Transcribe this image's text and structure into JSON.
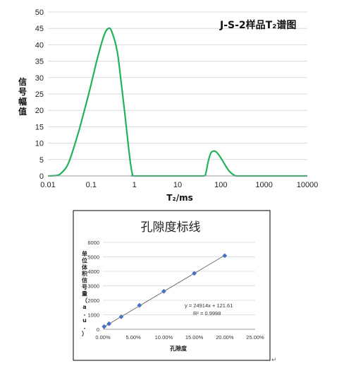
{
  "chart_data": [
    {
      "type": "line",
      "title": "J-S-2样品T₂谱图",
      "xlabel": "T₂/ms",
      "ylabel": "信号幅值",
      "xscale": "log",
      "xlim": [
        0.01,
        10000
      ],
      "ylim": [
        0,
        50
      ],
      "xticks": [
        "0.01",
        "0.1",
        "1",
        "10",
        "100",
        "1000",
        "10000"
      ],
      "yticks": [
        "0",
        "5",
        "10",
        "15",
        "20",
        "25",
        "30",
        "35",
        "40",
        "45",
        "50"
      ],
      "grid": "horizontal",
      "series": [
        {
          "color": "#22b35a",
          "x": [
            0.01,
            0.015,
            0.02,
            0.03,
            0.05,
            0.08,
            0.1,
            0.14,
            0.2,
            0.25,
            0.3,
            0.4,
            0.5,
            0.6,
            0.7,
            0.8,
            0.9,
            1,
            5,
            20,
            40,
            45,
            50,
            55,
            60,
            70,
            80,
            100,
            130,
            160,
            200,
            250,
            1000,
            10000
          ],
          "y": [
            0,
            0.1,
            0.8,
            4,
            13,
            23,
            28,
            36,
            43,
            45,
            44,
            38,
            28,
            19,
            11,
            4.5,
            0.5,
            0,
            0,
            0,
            0,
            1,
            4,
            6,
            7.2,
            7.6,
            7.2,
            5.5,
            3,
            1.3,
            0.3,
            0,
            0,
            0
          ]
        }
      ]
    },
    {
      "type": "scatter",
      "title": "孔隙度标线",
      "xlabel": "孔隙度",
      "ylabel": "单位体积信号量（a.u.）",
      "xlim": [
        0,
        0.25
      ],
      "ylim": [
        0,
        6000
      ],
      "xticks": [
        "0.00%",
        "5.00%",
        "10.00%",
        "15.00%",
        "20.00%",
        "25.00%"
      ],
      "yticks": [
        "0",
        "1000",
        "2000",
        "3000",
        "4000",
        "5000",
        "6000"
      ],
      "grid": "horizontal",
      "series": [
        {
          "color": "#4472c4",
          "x": [
            0.002,
            0.01,
            0.03,
            0.06,
            0.1,
            0.15,
            0.2
          ],
          "y": [
            180,
            380,
            860,
            1650,
            2620,
            3860,
            5080
          ]
        }
      ],
      "trendline": {
        "slope": 24914,
        "intercept": 121.61,
        "color": "#666666"
      },
      "equation": "y = 24914x + 121.61",
      "r2": "R² = 0.9998"
    }
  ],
  "paragraph_mark": "↵"
}
